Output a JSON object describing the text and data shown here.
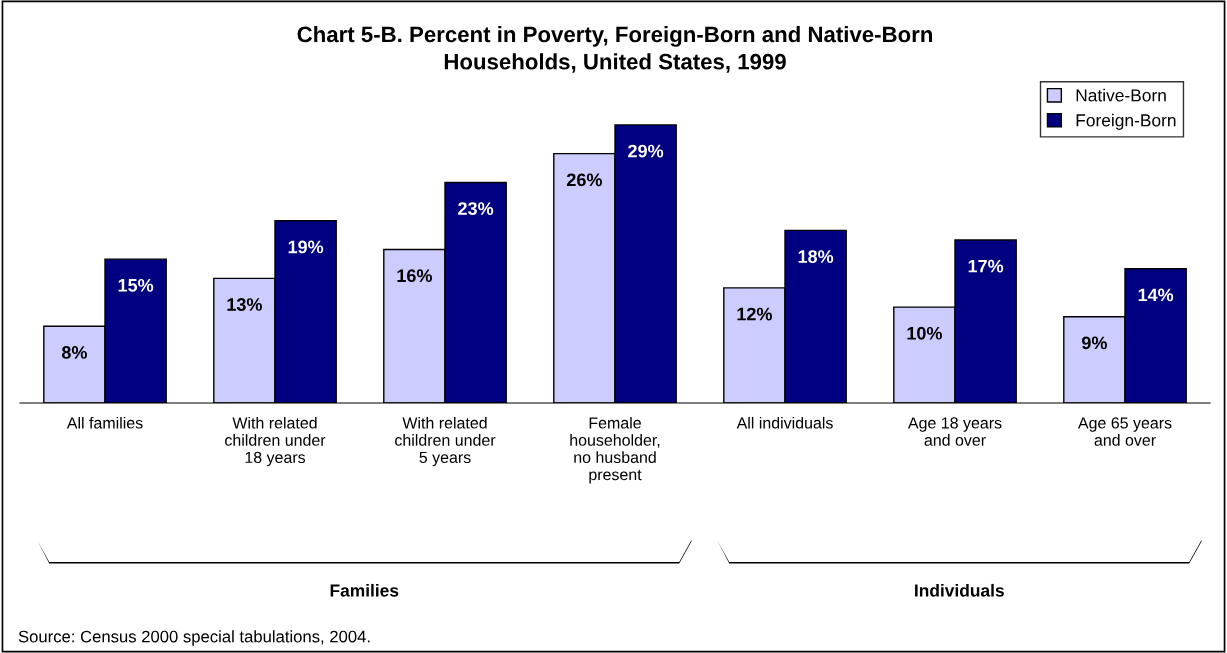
{
  "chart_data": {
    "type": "bar",
    "title": "Chart 5-B. Percent in Poverty, Foreign-Born and Native-Born\nHouseholds, United States, 1999",
    "categories": [
      "All families",
      "With related\nchildren under\n18 years",
      "With related\nchildren under\n5 years",
      "Female\nhouseholder,\nno husband\npresent",
      "All individuals",
      "Age 18 years\nand over",
      "Age 65 years\nand over"
    ],
    "series": [
      {
        "name": "Native-Born",
        "color": "#ccccff",
        "values": [
          8,
          13,
          16,
          26,
          12,
          10,
          9
        ],
        "value_labels": [
          "8%",
          "13%",
          "16%",
          "26%",
          "12%",
          "10%",
          "9%"
        ]
      },
      {
        "name": "Foreign-Born",
        "color": "#000080",
        "values": [
          15,
          19,
          23,
          29,
          18,
          17,
          14
        ],
        "value_labels": [
          "15%",
          "19%",
          "23%",
          "29%",
          "18%",
          "17%",
          "14%"
        ]
      }
    ],
    "legend": "top right",
    "grid": false,
    "annotations": [
      "Families",
      "Individuals",
      "Source: Census 2000 special tabulations, 2004."
    ]
  }
}
